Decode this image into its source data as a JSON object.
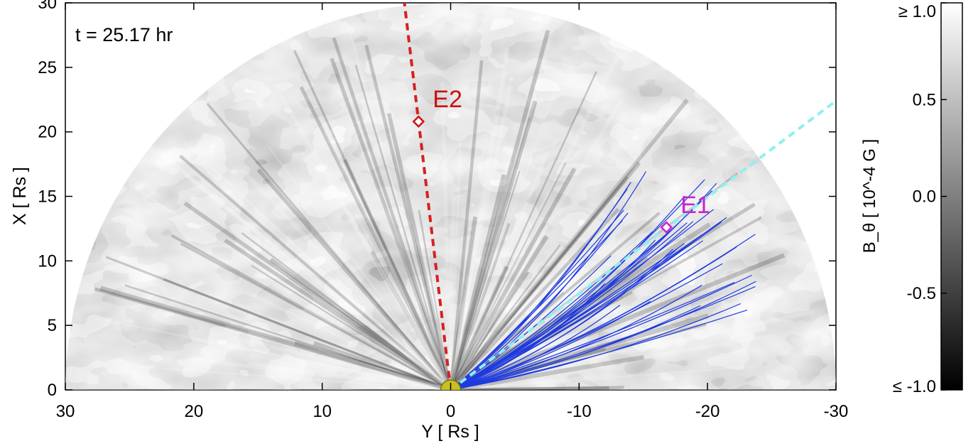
{
  "chart_data": {
    "type": "heatmap",
    "title": "",
    "annotation": "t =  25.17 hr",
    "xlabel": "Y  [ Rs ]",
    "ylabel": "X  [ Rs ]",
    "xlim": [
      30,
      -30
    ],
    "ylim": [
      0,
      30
    ],
    "x_ticks": [
      30,
      20,
      10,
      0,
      -10,
      -20,
      -30
    ],
    "x_tick_labels": [
      "30",
      "20",
      "10",
      "0",
      "-10",
      "-20",
      "-30"
    ],
    "y_ticks": [
      0,
      5,
      10,
      15,
      20,
      25,
      30
    ],
    "y_tick_labels": [
      "0",
      "5",
      "10",
      "15",
      "20",
      "25",
      "30"
    ],
    "domain": "half-disk, radius 30 Rs",
    "colormap": "grayscale",
    "colorbar": {
      "label": "B_θ [ 10^-4 G ]",
      "range": [
        -1.0,
        1.0
      ],
      "ticks": [
        1.0,
        0.5,
        0.0,
        -0.5,
        -1.0
      ],
      "tick_labels": [
        "≥ 1.0",
        "0.5",
        "0.0",
        "-0.5",
        "≤ -1.0"
      ]
    },
    "lines": [
      {
        "name": "",
        "color": "#d62020",
        "style": "dashed",
        "points": [
          [
            0,
            0
          ],
          [
            3.6,
            30
          ]
        ]
      },
      {
        "name": "",
        "color": "#8ff0f0",
        "style": "dashed",
        "points": [
          [
            0,
            0
          ],
          [
            -30,
            22.4
          ]
        ]
      }
    ],
    "markers": [
      {
        "label": "E2",
        "x": 2.5,
        "y": 20.8,
        "color": "#cc1111"
      },
      {
        "label": "E1",
        "x": -16.8,
        "y": 12.6,
        "color": "#cc22cc"
      }
    ],
    "sun": {
      "x": 0,
      "y": 0,
      "color": "#c8c020"
    },
    "field_lines_color": "#1e3ae0"
  }
}
